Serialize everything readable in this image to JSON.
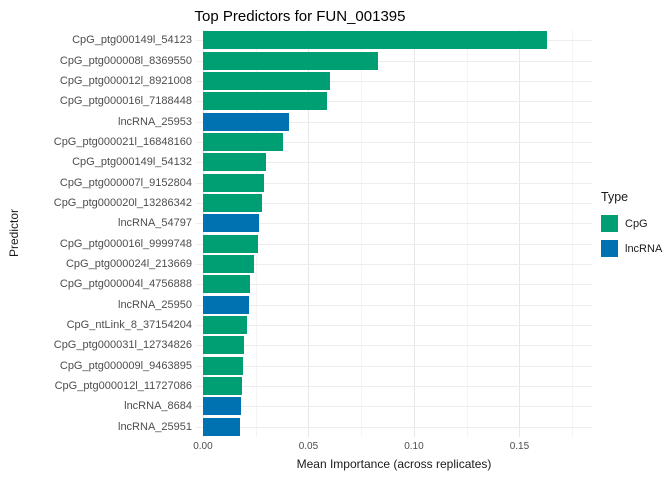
{
  "title": "Top Predictors for FUN_001395",
  "xlabel": "Mean Importance (across replicates)",
  "ylabel": "Predictor",
  "legend": {
    "title": "Type",
    "items": [
      {
        "label": "CpG",
        "color": "#009E73"
      },
      {
        "label": "lncRNA",
        "color": "#0072B2"
      }
    ]
  },
  "chart_data": {
    "type": "bar",
    "orientation": "horizontal",
    "title": "Top Predictors for FUN_001395",
    "xlabel": "Mean Importance (across replicates)",
    "ylabel": "Predictor",
    "xlim": [
      -0.0033,
      0.1844
    ],
    "xticks": [
      0,
      0.05,
      0.1,
      0.15
    ],
    "xtick_labels": [
      "0.00",
      "0.05",
      "0.10",
      "0.15"
    ],
    "xticks_minor": [
      0.025,
      0.075,
      0.125,
      0.175
    ],
    "grid": true,
    "legend_position": "right",
    "series_key": "Type",
    "categories": [
      "CpG_ptg000149l_54123",
      "CpG_ptg000008l_8369550",
      "CpG_ptg000012l_8921008",
      "CpG_ptg000016l_7188448",
      "lncRNA_25953",
      "CpG_ptg000021l_16848160",
      "CpG_ptg000149l_54132",
      "CpG_ptg000007l_9152804",
      "CpG_ptg000020l_13286342",
      "lncRNA_54797",
      "CpG_ptg000016l_9999748",
      "CpG_ptg000024l_213669",
      "CpG_ptg000004l_4756888",
      "lncRNA_25950",
      "CpG_ntLink_8_37154204",
      "CpG_ptg000031l_12734826",
      "CpG_ptg000009l_9463895",
      "CpG_ptg000012l_11727086",
      "lncRNA_8684",
      "lncRNA_25951"
    ],
    "values": [
      0.163,
      0.083,
      0.06,
      0.059,
      0.041,
      0.038,
      0.03,
      0.029,
      0.028,
      0.0265,
      0.026,
      0.024,
      0.0225,
      0.022,
      0.021,
      0.0195,
      0.019,
      0.0185,
      0.018,
      0.0175
    ],
    "types": [
      "CpG",
      "CpG",
      "CpG",
      "CpG",
      "lncRNA",
      "CpG",
      "CpG",
      "CpG",
      "CpG",
      "lncRNA",
      "CpG",
      "CpG",
      "CpG",
      "lncRNA",
      "CpG",
      "CpG",
      "CpG",
      "CpG",
      "lncRNA",
      "lncRNA"
    ],
    "colors": {
      "CpG": "#009E73",
      "lncRNA": "#0072B2"
    }
  }
}
